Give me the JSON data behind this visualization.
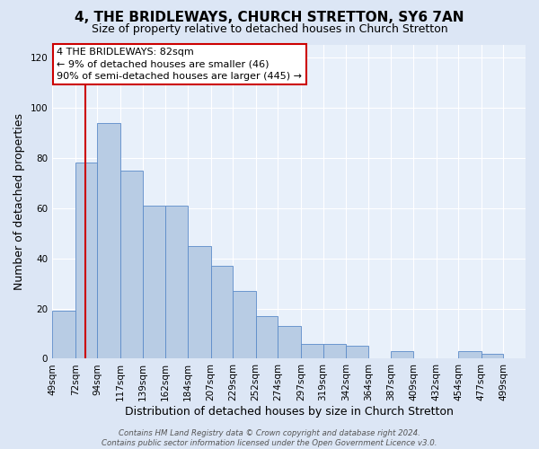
{
  "title": "4, THE BRIDLEWAYS, CHURCH STRETTON, SY6 7AN",
  "subtitle": "Size of property relative to detached houses in Church Stretton",
  "xlabel": "Distribution of detached houses by size in Church Stretton",
  "ylabel": "Number of detached properties",
  "bin_labels": [
    "49sqm",
    "72sqm",
    "94sqm",
    "117sqm",
    "139sqm",
    "162sqm",
    "184sqm",
    "207sqm",
    "229sqm",
    "252sqm",
    "274sqm",
    "297sqm",
    "319sqm",
    "342sqm",
    "364sqm",
    "387sqm",
    "409sqm",
    "432sqm",
    "454sqm",
    "477sqm",
    "499sqm"
  ],
  "bin_edges": [
    49,
    72,
    94,
    117,
    139,
    162,
    184,
    207,
    229,
    252,
    274,
    297,
    319,
    342,
    364,
    387,
    409,
    432,
    454,
    477,
    499
  ],
  "bar_heights": [
    19,
    78,
    94,
    75,
    61,
    61,
    45,
    37,
    27,
    17,
    13,
    6,
    6,
    5,
    0,
    3,
    0,
    0,
    3,
    2,
    0
  ],
  "bar_color": "#b8cce4",
  "bar_edge_color": "#5b8bc9",
  "property_line_x": 82,
  "property_line_color": "#cc0000",
  "ylim": [
    0,
    125
  ],
  "yticks": [
    0,
    20,
    40,
    60,
    80,
    100,
    120
  ],
  "annotation_text": "4 THE BRIDLEWAYS: 82sqm\n← 9% of detached houses are smaller (46)\n90% of semi-detached houses are larger (445) →",
  "annotation_box_facecolor": "#ffffff",
  "annotation_box_edge_color": "#cc0000",
  "footnote": "Contains HM Land Registry data © Crown copyright and database right 2024.\nContains public sector information licensed under the Open Government Licence v3.0.",
  "fig_background_color": "#dce6f5",
  "plot_background_color": "#e8f0fa",
  "grid_color": "#ffffff",
  "title_fontsize": 11,
  "subtitle_fontsize": 9,
  "ylabel_fontsize": 9,
  "xlabel_fontsize": 9,
  "tick_fontsize": 7.5,
  "annot_fontsize": 8
}
